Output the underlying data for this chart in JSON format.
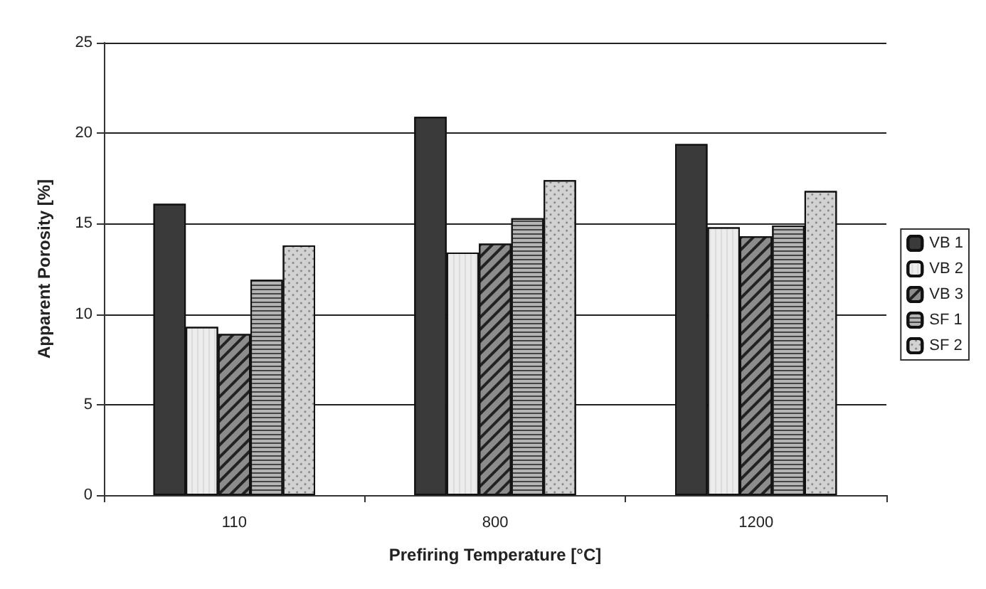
{
  "chart_data": {
    "type": "bar",
    "xlabel": "Prefiring Temperature [°C]",
    "ylabel": "Apparent Porosity [%]",
    "categories": [
      "110",
      "800",
      "1200"
    ],
    "series": [
      {
        "name": "VB 1",
        "color": "#3a3a3a",
        "values": [
          16.1,
          20.9,
          19.4
        ]
      },
      {
        "name": "VB 2",
        "color": "#ececec",
        "values": [
          9.3,
          13.4,
          14.8
        ]
      },
      {
        "name": "VB 3",
        "color": "#8c8c8c",
        "values": [
          8.9,
          13.9,
          14.3
        ]
      },
      {
        "name": "SF 1",
        "color": "#b4b4b4",
        "values": [
          11.9,
          15.3,
          14.9
        ]
      },
      {
        "name": "SF 2",
        "color": "#d2d2d2",
        "values": [
          13.8,
          17.4,
          16.8
        ]
      }
    ],
    "ylim": [
      0,
      25
    ],
    "yticks": [
      0,
      5,
      10,
      15,
      20,
      25
    ],
    "grid": "y",
    "legend": "right"
  }
}
